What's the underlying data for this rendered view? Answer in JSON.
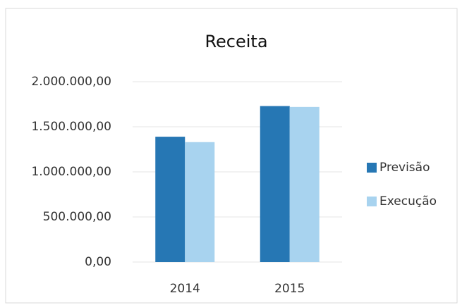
{
  "chart_data": {
    "type": "bar",
    "title": "Receita",
    "categories": [
      "2014",
      "2015"
    ],
    "series": [
      {
        "name": "Previsão",
        "color": "#2677b4",
        "values": [
          1390000,
          1730000
        ]
      },
      {
        "name": "Execução",
        "color": "#a8d3ef",
        "values": [
          1330000,
          1720000
        ]
      }
    ],
    "ylim": [
      0,
      2000000
    ],
    "yticks": [
      {
        "value": 0,
        "label": "0,00"
      },
      {
        "value": 500000,
        "label": "500.000,00"
      },
      {
        "value": 1000000,
        "label": "1.000.000,00"
      },
      {
        "value": 1500000,
        "label": "1.500.000,00"
      },
      {
        "value": 2000000,
        "label": "2.000.000,00"
      }
    ],
    "grid": true,
    "legend": "right"
  }
}
